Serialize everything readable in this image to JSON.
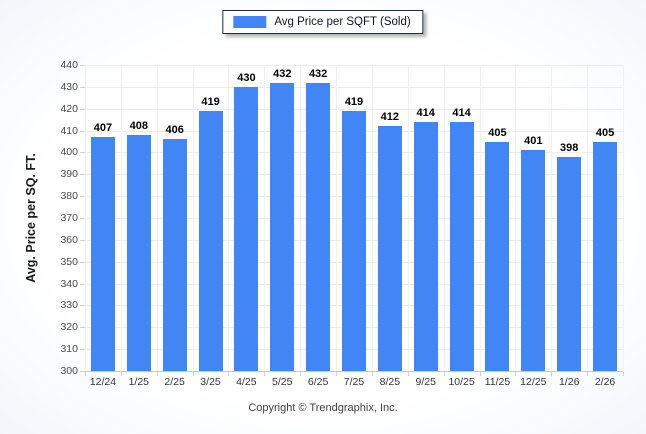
{
  "legend": {
    "label": "Avg Price per SQFT (Sold)",
    "swatch_color": "#4285f4",
    "border_color": "#1e2d3d"
  },
  "footer": {
    "text": "Copyright © Trendgraphix, Inc."
  },
  "chart_data": {
    "type": "bar",
    "title": "",
    "categories": [
      "12/24",
      "1/25",
      "2/25",
      "3/25",
      "4/25",
      "5/25",
      "6/25",
      "7/25",
      "8/25",
      "9/25",
      "10/25",
      "11/25",
      "12/25",
      "1/26",
      "2/26"
    ],
    "values": [
      407,
      408,
      406,
      419,
      430,
      432,
      432,
      419,
      412,
      414,
      414,
      405,
      401,
      398,
      405
    ],
    "series_name": "Avg Price per SQFT (Sold)",
    "xlabel": "",
    "ylabel": "Avg. Price per SQ. FT.",
    "ylim": [
      300,
      440
    ],
    "ytick_step": 10,
    "grid": "horizontal-and-vertical",
    "legend_position": "top-center",
    "bar_color": "#4285f4",
    "value_labels": true
  }
}
